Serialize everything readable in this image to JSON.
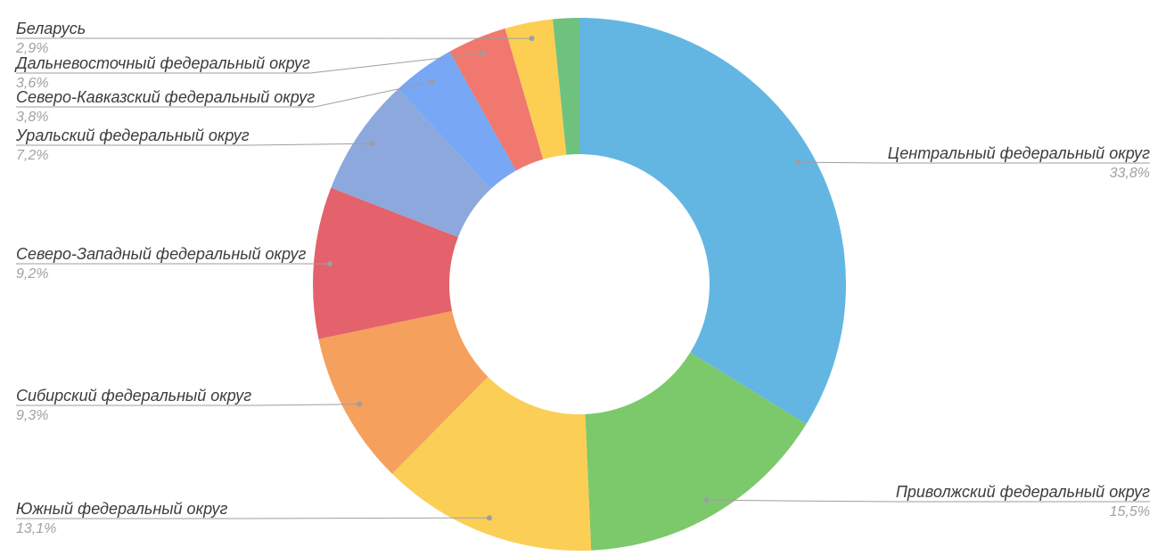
{
  "chart_data": {
    "type": "pie",
    "donut": true,
    "title": "",
    "legend_position": "labeled",
    "start_angle_deg": 0,
    "direction": "clockwise",
    "background": "#ffffff",
    "label_color": "#3c3c3c",
    "percent_color": "#a1a1a1",
    "leader_line_color": "#9e9e9e",
    "slices": [
      {
        "label": "Центральный федеральный округ",
        "value": 33.8,
        "percent_label": "33,8%",
        "color": "#63b6e2"
      },
      {
        "label": "Приволжский федеральный округ",
        "value": 15.5,
        "percent_label": "15,5%",
        "color": "#7cc96b"
      },
      {
        "label": "Южный федеральный округ",
        "value": 13.1,
        "percent_label": "13,1%",
        "color": "#fbcf55"
      },
      {
        "label": "Сибирский федеральный округ",
        "value": 9.3,
        "percent_label": "9,3%",
        "color": "#f5a05d"
      },
      {
        "label": "Северо-Западный федеральный округ",
        "value": 9.2,
        "percent_label": "9,2%",
        "color": "#e4626b"
      },
      {
        "label": "Уральский федеральный округ",
        "value": 7.2,
        "percent_label": "7,2%",
        "color": "#8da8dc"
      },
      {
        "label": "Северо-Кавказский федеральный округ",
        "value": 3.8,
        "percent_label": "3,8%",
        "color": "#77a7f5"
      },
      {
        "label": "Дальневосточный федеральный округ",
        "value": 3.6,
        "percent_label": "3,6%",
        "color": "#f0786e"
      },
      {
        "label": "Беларусь",
        "value": 2.9,
        "percent_label": "2,9%",
        "color": "#fccf52"
      },
      {
        "label": "",
        "value": 1.6,
        "percent_label": "",
        "color": "#6fc17e"
      }
    ]
  }
}
